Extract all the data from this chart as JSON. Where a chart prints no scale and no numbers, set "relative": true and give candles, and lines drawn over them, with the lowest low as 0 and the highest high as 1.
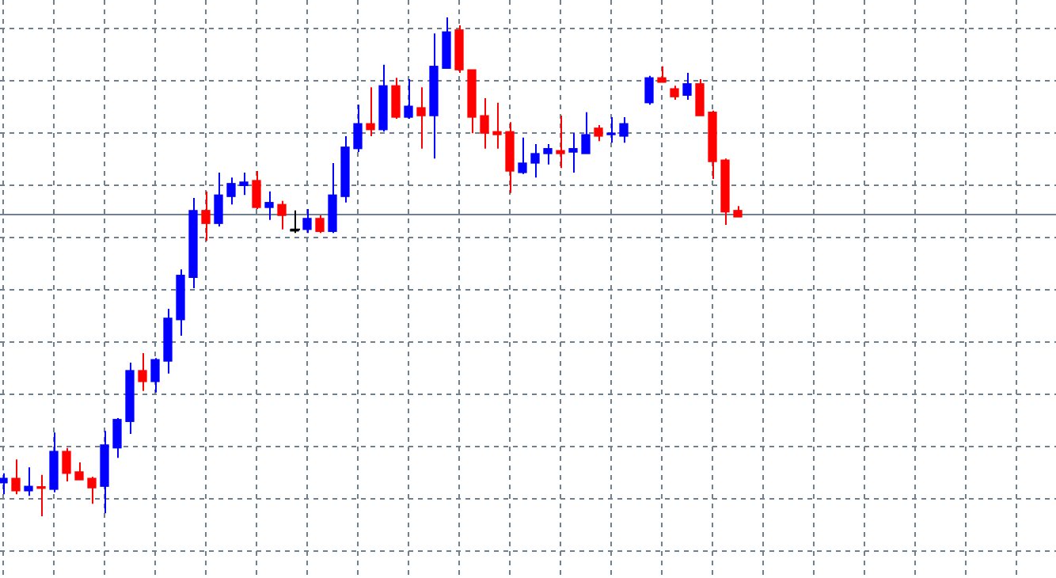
{
  "chart_data": {
    "type": "candlestick",
    "relative": true,
    "grid": true,
    "legend": false,
    "categories": [
      null,
      null,
      null,
      null,
      null,
      null,
      null,
      null,
      null,
      null,
      null,
      null,
      null,
      null,
      null,
      null,
      null,
      null,
      null,
      null,
      null,
      null,
      null,
      null,
      null,
      null,
      null,
      null,
      null,
      null,
      null,
      null,
      null,
      null,
      null,
      null,
      null,
      null,
      null,
      null,
      null,
      null,
      null,
      null,
      null,
      null,
      null,
      null,
      null,
      null,
      null,
      null,
      null,
      null,
      null,
      null,
      null,
      null,
      null
    ],
    "ohlc": [
      [
        0.067,
        0.086,
        0.044,
        0.076
      ],
      [
        0.076,
        0.114,
        0.044,
        0.051
      ],
      [
        0.051,
        0.098,
        0.041,
        0.06
      ],
      [
        0.057,
        0.083,
        0,
        0.056
      ],
      [
        0.054,
        0.168,
        0.048,
        0.13
      ],
      [
        0.13,
        0.137,
        0.07,
        0.086
      ],
      [
        0.089,
        0.108,
        0.073,
        0.073
      ],
      [
        0.076,
        0.079,
        0.025,
        0.057
      ],
      [
        0.06,
        0.171,
        0.006,
        0.143
      ],
      [
        0.137,
        0.197,
        0.117,
        0.194
      ],
      [
        0.19,
        0.308,
        0.165,
        0.292
      ],
      [
        0.292,
        0.327,
        0.251,
        0.27
      ],
      [
        0.27,
        0.317,
        0.248,
        0.314
      ],
      [
        0.311,
        0.416,
        0.286,
        0.397
      ],
      [
        0.394,
        0.495,
        0.362,
        0.483
      ],
      [
        0.479,
        0.638,
        0.457,
        0.613
      ],
      [
        0.613,
        0.651,
        0.552,
        0.587
      ],
      [
        0.587,
        0.689,
        0.581,
        0.644
      ],
      [
        0.641,
        0.679,
        0.625,
        0.667
      ],
      [
        0.663,
        0.689,
        0.644,
        0.67
      ],
      [
        0.673,
        0.692,
        0.616,
        0.619
      ],
      [
        0.619,
        0.651,
        0.594,
        0.629
      ],
      [
        0.625,
        0.632,
        0.575,
        0.603
      ],
      [
        0.575,
        0.613,
        0.568,
        0.575
      ],
      [
        0.575,
        0.616,
        0.568,
        0.597
      ],
      [
        0.597,
        0.603,
        0.568,
        0.571
      ],
      [
        0.571,
        0.708,
        0.568,
        0.644
      ],
      [
        0.641,
        0.762,
        0.629,
        0.74
      ],
      [
        0.737,
        0.825,
        0.73,
        0.787
      ],
      [
        0.787,
        0.86,
        0.762,
        0.775
      ],
      [
        0.775,
        0.905,
        0.771,
        0.863
      ],
      [
        0.863,
        0.879,
        0.797,
        0.8
      ],
      [
        0.8,
        0.876,
        0.797,
        0.822
      ],
      [
        0.819,
        0.86,
        0.737,
        0.803
      ],
      [
        0.803,
        0.968,
        0.717,
        0.902
      ],
      [
        0.898,
        1,
        0.898,
        0.971
      ],
      [
        0.975,
        0.984,
        0.889,
        0.895
      ],
      [
        0.895,
        0.895,
        0.768,
        0.8
      ],
      [
        0.803,
        0.838,
        0.737,
        0.768
      ],
      [
        0.771,
        0.829,
        0.737,
        0.765
      ],
      [
        0.771,
        0.79,
        0.648,
        0.692
      ],
      [
        0.689,
        0.759,
        0.686,
        0.708
      ],
      [
        0.708,
        0.746,
        0.679,
        0.727
      ],
      [
        0.727,
        0.746,
        0.705,
        0.737
      ],
      [
        0.733,
        0.803,
        0.698,
        0.727
      ],
      [
        0.73,
        0.768,
        0.689,
        0.737
      ],
      [
        0.727,
        0.81,
        0.727,
        0.765
      ],
      [
        0.778,
        0.784,
        0.752,
        0.762
      ],
      [
        0.765,
        0.8,
        0.749,
        0.768
      ],
      [
        0.762,
        0.8,
        0.749,
        0.787
      ],
      null,
      [
        0.829,
        0.883,
        0.825,
        0.879
      ],
      [
        0.879,
        0.902,
        0.87,
        0.87
      ],
      [
        0.857,
        0.863,
        0.835,
        0.841
      ],
      [
        0.844,
        0.889,
        0.835,
        0.867
      ],
      [
        0.867,
        0.876,
        0.803,
        0.803
      ],
      [
        0.81,
        0.813,
        0.676,
        0.711
      ],
      [
        0.714,
        0.717,
        0.584,
        0.61
      ],
      [
        0.613,
        0.622,
        0.6,
        0.6
      ]
    ],
    "colors": [
      "#0000ff",
      "#ff0000",
      "#0000ff",
      "#ff0000",
      "#0000ff",
      "#ff0000",
      "#ff0000",
      "#ff0000",
      "#0000ff",
      "#0000ff",
      "#0000ff",
      "#ff0000",
      "#0000ff",
      "#0000ff",
      "#0000ff",
      "#0000ff",
      "#ff0000",
      "#0000ff",
      "#0000ff",
      "#0000ff",
      "#ff0000",
      "#0000ff",
      "#ff0000",
      "#000000",
      "#0000ff",
      "#ff0000",
      "#0000ff",
      "#0000ff",
      "#0000ff",
      "#ff0000",
      "#0000ff",
      "#ff0000",
      "#0000ff",
      "#ff0000",
      "#0000ff",
      "#0000ff",
      "#ff0000",
      "#ff0000",
      "#ff0000",
      "#ff0000",
      "#ff0000",
      "#0000ff",
      "#0000ff",
      "#0000ff",
      "#ff0000",
      "#0000ff",
      "#0000ff",
      "#ff0000",
      "#0000ff",
      "#0000ff",
      null,
      "#0000ff",
      "#ff0000",
      "#ff0000",
      "#0000ff",
      "#ff0000",
      "#ff0000",
      "#ff0000",
      "#ff0000"
    ],
    "ref_lines": [
      {
        "axis": "y",
        "value": 0.606,
        "color": "#708090",
        "line_style": "solid"
      }
    ]
  }
}
